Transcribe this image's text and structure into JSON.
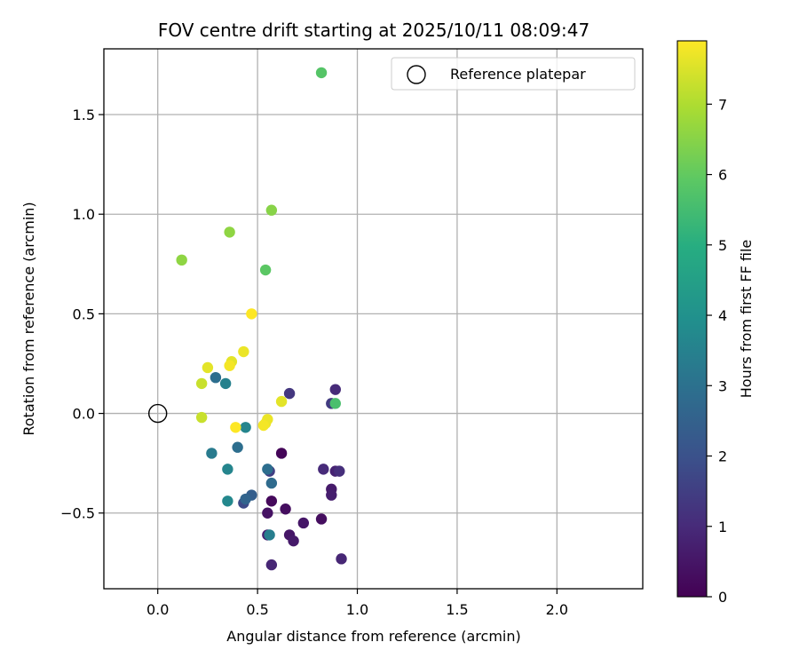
{
  "chart_data": {
    "type": "scatter",
    "title": "FOV centre drift starting at 2025/10/11 08:09:47",
    "xlabel": "Angular distance from reference (arcmin)",
    "ylabel": "Rotation from reference (arcmin)",
    "xlim": [
      -0.27,
      2.43
    ],
    "ylim": [
      -0.88,
      1.83
    ],
    "xticks": [
      0.0,
      0.5,
      1.0,
      1.5,
      2.0
    ],
    "xtick_labels": [
      "0.0",
      "0.5",
      "1.0",
      "1.5",
      "2.0"
    ],
    "yticks": [
      -0.5,
      0.0,
      0.5,
      1.0,
      1.5
    ],
    "ytick_labels": [
      "−0.5",
      "0.0",
      "0.5",
      "1.0",
      "1.5"
    ],
    "grid": true,
    "colormap": "viridis",
    "colorbar": {
      "label": "Hours from first FF file",
      "min": 0,
      "max": 7.9,
      "ticks": [
        0,
        1,
        2,
        3,
        4,
        5,
        6,
        7
      ],
      "tick_labels": [
        "0",
        "1",
        "2",
        "3",
        "4",
        "5",
        "6",
        "7"
      ]
    },
    "legend": {
      "placement": "top-right",
      "entries": [
        "Reference platepar"
      ]
    },
    "reference_point": {
      "x": 0.0,
      "y": 0.0
    },
    "series": [
      {
        "name": "FOV centre",
        "points": [
          {
            "x": 0.62,
            "y": -0.2,
            "t": 0.1
          },
          {
            "x": 0.57,
            "y": -0.44,
            "t": 0.2
          },
          {
            "x": 0.64,
            "y": -0.48,
            "t": 0.3
          },
          {
            "x": 0.55,
            "y": -0.5,
            "t": 0.4
          },
          {
            "x": 0.73,
            "y": -0.55,
            "t": 0.5
          },
          {
            "x": 0.82,
            "y": -0.53,
            "t": 0.3
          },
          {
            "x": 0.66,
            "y": -0.61,
            "t": 0.5
          },
          {
            "x": 0.68,
            "y": -0.64,
            "t": 0.6
          },
          {
            "x": 0.55,
            "y": -0.61,
            "t": 0.8
          },
          {
            "x": 0.57,
            "y": -0.76,
            "t": 0.9
          },
          {
            "x": 0.92,
            "y": -0.73,
            "t": 0.9
          },
          {
            "x": 0.87,
            "y": -0.38,
            "t": 0.6
          },
          {
            "x": 0.87,
            "y": -0.41,
            "t": 0.7
          },
          {
            "x": 0.83,
            "y": -0.28,
            "t": 1.0
          },
          {
            "x": 0.89,
            "y": -0.29,
            "t": 0.8
          },
          {
            "x": 0.91,
            "y": -0.29,
            "t": 1.1
          },
          {
            "x": 0.89,
            "y": 0.12,
            "t": 1.0
          },
          {
            "x": 0.66,
            "y": 0.1,
            "t": 1.3
          },
          {
            "x": 0.87,
            "y": 0.05,
            "t": 1.4
          },
          {
            "x": 0.56,
            "y": -0.29,
            "t": 1.5
          },
          {
            "x": 0.43,
            "y": -0.45,
            "t": 1.8
          },
          {
            "x": 0.47,
            "y": -0.41,
            "t": 2.4
          },
          {
            "x": 0.44,
            "y": -0.43,
            "t": 2.6
          },
          {
            "x": 0.57,
            "y": -0.35,
            "t": 2.8
          },
          {
            "x": 0.55,
            "y": -0.28,
            "t": 2.9
          },
          {
            "x": 0.4,
            "y": -0.17,
            "t": 2.9
          },
          {
            "x": 0.29,
            "y": 0.18,
            "t": 2.9
          },
          {
            "x": 0.27,
            "y": -0.2,
            "t": 3.3
          },
          {
            "x": 0.56,
            "y": -0.61,
            "t": 3.4
          },
          {
            "x": 0.34,
            "y": 0.15,
            "t": 3.5
          },
          {
            "x": 0.35,
            "y": -0.28,
            "t": 3.6
          },
          {
            "x": 0.35,
            "y": -0.44,
            "t": 3.7
          },
          {
            "x": 0.44,
            "y": -0.07,
            "t": 3.6
          },
          {
            "x": 0.89,
            "y": 0.05,
            "t": 5.6
          },
          {
            "x": 0.82,
            "y": 1.71,
            "t": 5.8
          },
          {
            "x": 0.54,
            "y": 0.72,
            "t": 5.9
          },
          {
            "x": 0.57,
            "y": 1.02,
            "t": 6.5
          },
          {
            "x": 0.36,
            "y": 0.91,
            "t": 6.6
          },
          {
            "x": 0.12,
            "y": 0.77,
            "t": 6.6
          },
          {
            "x": 0.43,
            "y": 0.31,
            "t": 7.7
          },
          {
            "x": 0.37,
            "y": 0.26,
            "t": 7.6
          },
          {
            "x": 0.36,
            "y": 0.24,
            "t": 7.8
          },
          {
            "x": 0.25,
            "y": 0.23,
            "t": 7.6
          },
          {
            "x": 0.22,
            "y": 0.15,
            "t": 7.3
          },
          {
            "x": 0.47,
            "y": 0.5,
            "t": 7.9
          },
          {
            "x": 0.62,
            "y": 0.06,
            "t": 7.6
          },
          {
            "x": 0.22,
            "y": -0.02,
            "t": 7.3
          },
          {
            "x": 0.55,
            "y": -0.03,
            "t": 7.7
          },
          {
            "x": 0.54,
            "y": -0.05,
            "t": 7.7
          },
          {
            "x": 0.53,
            "y": -0.06,
            "t": 7.8
          },
          {
            "x": 0.39,
            "y": -0.07,
            "t": 7.9
          }
        ]
      }
    ]
  }
}
